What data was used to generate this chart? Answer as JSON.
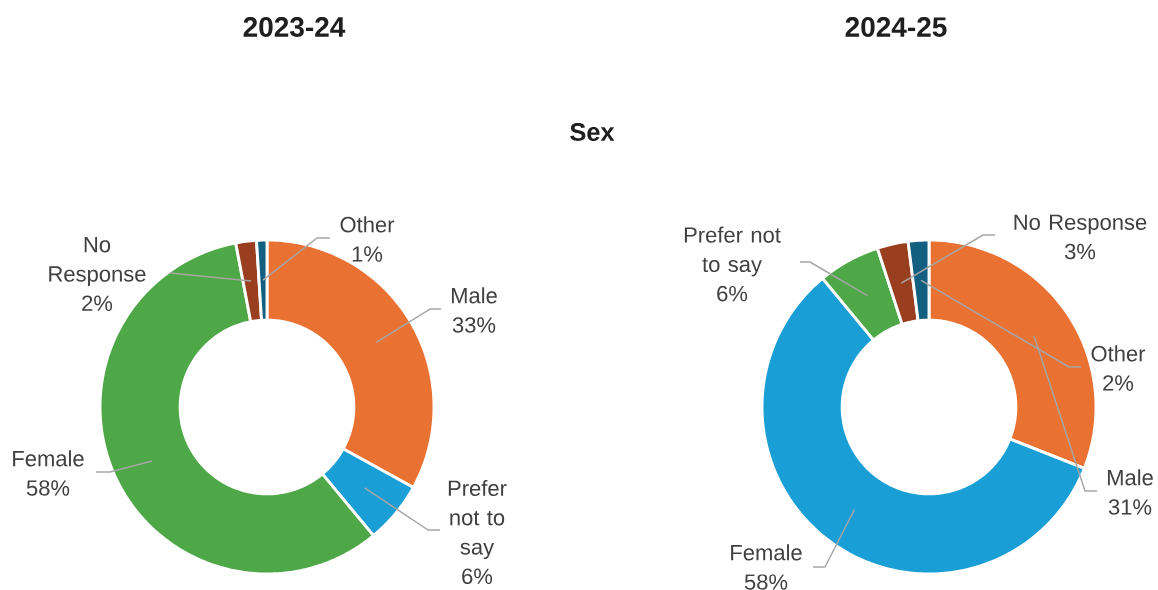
{
  "chart_data": [
    {
      "type": "donut",
      "title": "2023-24",
      "subtitle": "Sex",
      "categories": [
        "Male",
        "Prefer not to say",
        "Female",
        "No Response",
        "Other"
      ],
      "values": [
        33,
        6,
        58,
        2,
        1
      ],
      "value_labels": [
        "33%",
        "6%",
        "58%",
        "2%",
        "1%"
      ],
      "colors": [
        "#E97132",
        "#199ED6",
        "#4EA847",
        "#993E1F",
        "#135F80"
      ]
    },
    {
      "type": "donut",
      "title": "2024-25",
      "categories": [
        "Male",
        "Female",
        "Prefer not to say",
        "No Response",
        "Other"
      ],
      "values": [
        31,
        58,
        6,
        3,
        2
      ],
      "value_labels": [
        "31%",
        "58%",
        "6%",
        "3%",
        "2%"
      ],
      "colors": [
        "#E97132",
        "#199ED6",
        "#4EA847",
        "#993E1F",
        "#135F80"
      ]
    }
  ]
}
